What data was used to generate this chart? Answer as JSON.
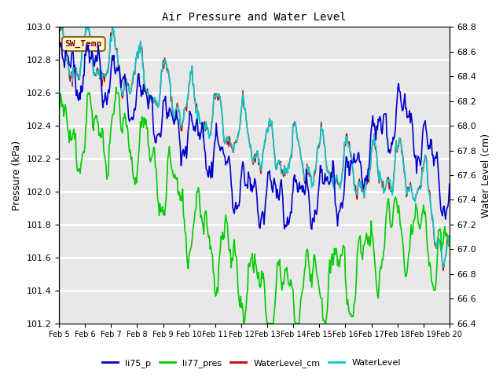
{
  "title": "Air Pressure and Water Level",
  "ylabel_left": "Pressure (kPa)",
  "ylabel_right": "Water Level (cm)",
  "ylim_left": [
    101.2,
    103.0
  ],
  "ylim_right": [
    66.4,
    68.8
  ],
  "xtick_labels": [
    "Feb 5",
    "Feb 6",
    "Feb 7",
    "Feb 8",
    "Feb 9",
    "Feb 10",
    "Feb 11",
    "Feb 12",
    "Feb 13",
    "Feb 14",
    "Feb 15",
    "Feb 16",
    "Feb 17",
    "Feb 18",
    "Feb 19",
    "Feb 20"
  ],
  "annotation_text": "SW_Temp",
  "annotation_color": "#8B0000",
  "annotation_bg": "#FFFACD",
  "annotation_border": "#8B6914",
  "colors": {
    "li75_p": "#0000CC",
    "li77_pres": "#00CC00",
    "WaterLevel_cm": "#CC0000",
    "WaterLevel": "#00CCCC"
  },
  "bg_color": "#E8E8E8",
  "grid_color": "#FFFFFF",
  "n_points": 500,
  "seed": 7
}
